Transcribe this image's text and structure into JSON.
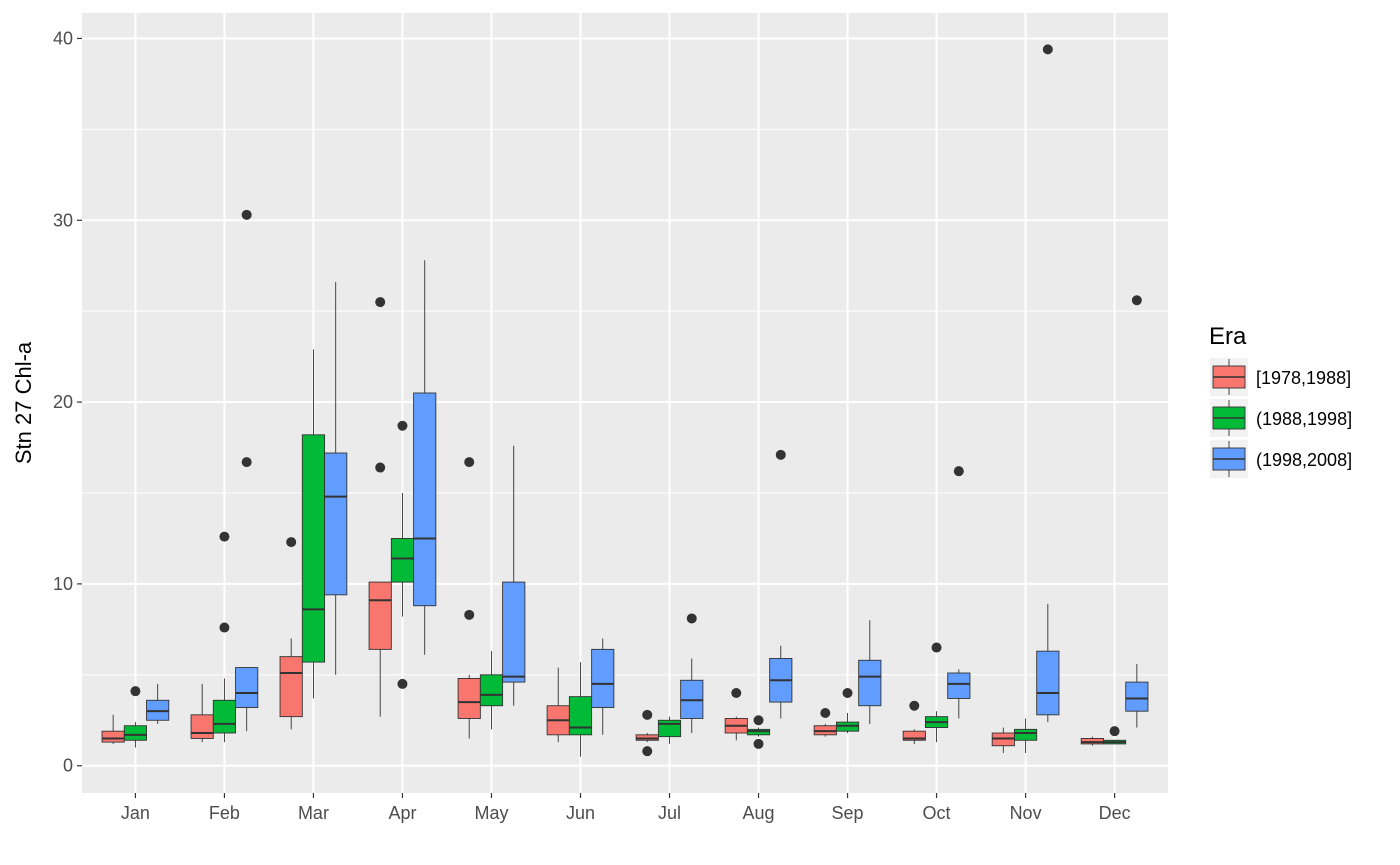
{
  "chart_data": {
    "type": "boxplot",
    "xlabel": "",
    "ylabel": "Stn 27 Chl-a",
    "ylim": [
      -1.5,
      41.4
    ],
    "yticks": [
      0,
      10,
      20,
      30,
      40
    ],
    "grid": true,
    "legend_position": "right",
    "legend_title": "Era",
    "categories": [
      "Jan",
      "Feb",
      "Mar",
      "Apr",
      "May",
      "Jun",
      "Jul",
      "Aug",
      "Sep",
      "Oct",
      "Nov",
      "Dec"
    ],
    "colors": {
      "panel": "#ebebeb",
      "grid": "#ffffff",
      "box_outline": "#333333",
      "outlier": "#333333"
    },
    "series": [
      {
        "name": "[1978,1988]",
        "color": "#f8766d",
        "boxes": [
          {
            "low": 1.2,
            "q1": 1.3,
            "median": 1.5,
            "q3": 1.9,
            "high": 2.8,
            "outliers": []
          },
          {
            "low": 1.3,
            "q1": 1.5,
            "median": 1.8,
            "q3": 2.8,
            "high": 4.5,
            "outliers": []
          },
          {
            "low": 2.0,
            "q1": 2.7,
            "median": 5.1,
            "q3": 6.0,
            "high": 7.0,
            "outliers": [
              12.3
            ]
          },
          {
            "low": 2.7,
            "q1": 6.4,
            "median": 9.1,
            "q3": 10.1,
            "high": 10.1,
            "outliers": [
              25.5,
              16.4
            ]
          },
          {
            "low": 1.5,
            "q1": 2.6,
            "median": 3.5,
            "q3": 4.8,
            "high": 5.0,
            "outliers": [
              16.7,
              8.3
            ]
          },
          {
            "low": 1.3,
            "q1": 1.7,
            "median": 2.5,
            "q3": 3.3,
            "high": 5.4,
            "outliers": []
          },
          {
            "low": 1.3,
            "q1": 1.4,
            "median": 1.5,
            "q3": 1.7,
            "high": 1.8,
            "outliers": [
              2.8,
              0.8
            ]
          },
          {
            "low": 1.4,
            "q1": 1.8,
            "median": 2.2,
            "q3": 2.6,
            "high": 2.7,
            "outliers": [
              4.0
            ]
          },
          {
            "low": 1.6,
            "q1": 1.7,
            "median": 1.9,
            "q3": 2.2,
            "high": 2.3,
            "outliers": [
              2.9
            ]
          },
          {
            "low": 1.2,
            "q1": 1.4,
            "median": 1.5,
            "q3": 1.9,
            "high": 2.0,
            "outliers": [
              3.3
            ]
          },
          {
            "low": 0.7,
            "q1": 1.1,
            "median": 1.5,
            "q3": 1.8,
            "high": 2.1,
            "outliers": []
          },
          {
            "low": 1.1,
            "q1": 1.2,
            "median": 1.3,
            "q3": 1.5,
            "high": 1.6,
            "outliers": []
          }
        ]
      },
      {
        "name": "(1988,1998]",
        "color": "#00ba38",
        "boxes": [
          {
            "low": 1.0,
            "q1": 1.4,
            "median": 1.7,
            "q3": 2.2,
            "high": 2.4,
            "outliers": [
              4.1
            ]
          },
          {
            "low": 1.3,
            "q1": 1.8,
            "median": 2.3,
            "q3": 3.6,
            "high": 4.8,
            "outliers": [
              12.6,
              7.6
            ]
          },
          {
            "low": 3.7,
            "q1": 5.7,
            "median": 8.6,
            "q3": 18.2,
            "high": 22.9,
            "outliers": []
          },
          {
            "low": 8.2,
            "q1": 10.1,
            "median": 11.4,
            "q3": 12.5,
            "high": 15.0,
            "outliers": [
              18.7,
              4.5
            ]
          },
          {
            "low": 2.0,
            "q1": 3.3,
            "median": 3.9,
            "q3": 5.0,
            "high": 6.3,
            "outliers": []
          },
          {
            "low": 0.5,
            "q1": 1.7,
            "median": 2.1,
            "q3": 3.8,
            "high": 5.7,
            "outliers": []
          },
          {
            "low": 1.2,
            "q1": 1.6,
            "median": 2.3,
            "q3": 2.5,
            "high": 2.7,
            "outliers": []
          },
          {
            "low": 1.6,
            "q1": 1.7,
            "median": 1.9,
            "q3": 2.0,
            "high": 2.1,
            "outliers": [
              2.5,
              1.2
            ]
          },
          {
            "low": 1.8,
            "q1": 1.9,
            "median": 2.2,
            "q3": 2.4,
            "high": 2.9,
            "outliers": [
              4.0
            ]
          },
          {
            "low": 1.3,
            "q1": 2.1,
            "median": 2.4,
            "q3": 2.7,
            "high": 3.0,
            "outliers": [
              6.5
            ]
          },
          {
            "low": 0.7,
            "q1": 1.4,
            "median": 1.8,
            "q3": 2.0,
            "high": 2.6,
            "outliers": []
          },
          {
            "low": 1.2,
            "q1": 1.2,
            "median": 1.3,
            "q3": 1.4,
            "high": 1.4,
            "outliers": [
              1.9
            ]
          }
        ]
      },
      {
        "name": "(1998,2008]",
        "color": "#619cff",
        "boxes": [
          {
            "low": 2.3,
            "q1": 2.5,
            "median": 3.0,
            "q3": 3.6,
            "high": 4.5,
            "outliers": []
          },
          {
            "low": 1.9,
            "q1": 3.2,
            "median": 4.0,
            "q3": 5.4,
            "high": 5.4,
            "outliers": [
              30.3,
              16.7
            ]
          },
          {
            "low": 5.0,
            "q1": 9.4,
            "median": 14.8,
            "q3": 17.2,
            "high": 26.6,
            "outliers": []
          },
          {
            "low": 6.1,
            "q1": 8.8,
            "median": 12.5,
            "q3": 20.5,
            "high": 27.8,
            "outliers": []
          },
          {
            "low": 3.3,
            "q1": 4.6,
            "median": 4.9,
            "q3": 10.1,
            "high": 17.6,
            "outliers": []
          },
          {
            "low": 1.7,
            "q1": 3.2,
            "median": 4.5,
            "q3": 6.4,
            "high": 7.0,
            "outliers": []
          },
          {
            "low": 1.8,
            "q1": 2.6,
            "median": 3.6,
            "q3": 4.7,
            "high": 5.9,
            "outliers": [
              8.1
            ]
          },
          {
            "low": 2.6,
            "q1": 3.5,
            "median": 4.7,
            "q3": 5.9,
            "high": 6.6,
            "outliers": [
              17.1
            ]
          },
          {
            "low": 2.3,
            "q1": 3.3,
            "median": 4.9,
            "q3": 5.8,
            "high": 8.0,
            "outliers": []
          },
          {
            "low": 2.6,
            "q1": 3.7,
            "median": 4.5,
            "q3": 5.1,
            "high": 5.3,
            "outliers": [
              16.2
            ]
          },
          {
            "low": 2.4,
            "q1": 2.8,
            "median": 4.0,
            "q3": 6.3,
            "high": 8.9,
            "outliers": [
              39.4
            ]
          },
          {
            "low": 2.1,
            "q1": 3.0,
            "median": 3.7,
            "q3": 4.6,
            "high": 5.6,
            "outliers": [
              25.6
            ]
          }
        ]
      }
    ]
  }
}
